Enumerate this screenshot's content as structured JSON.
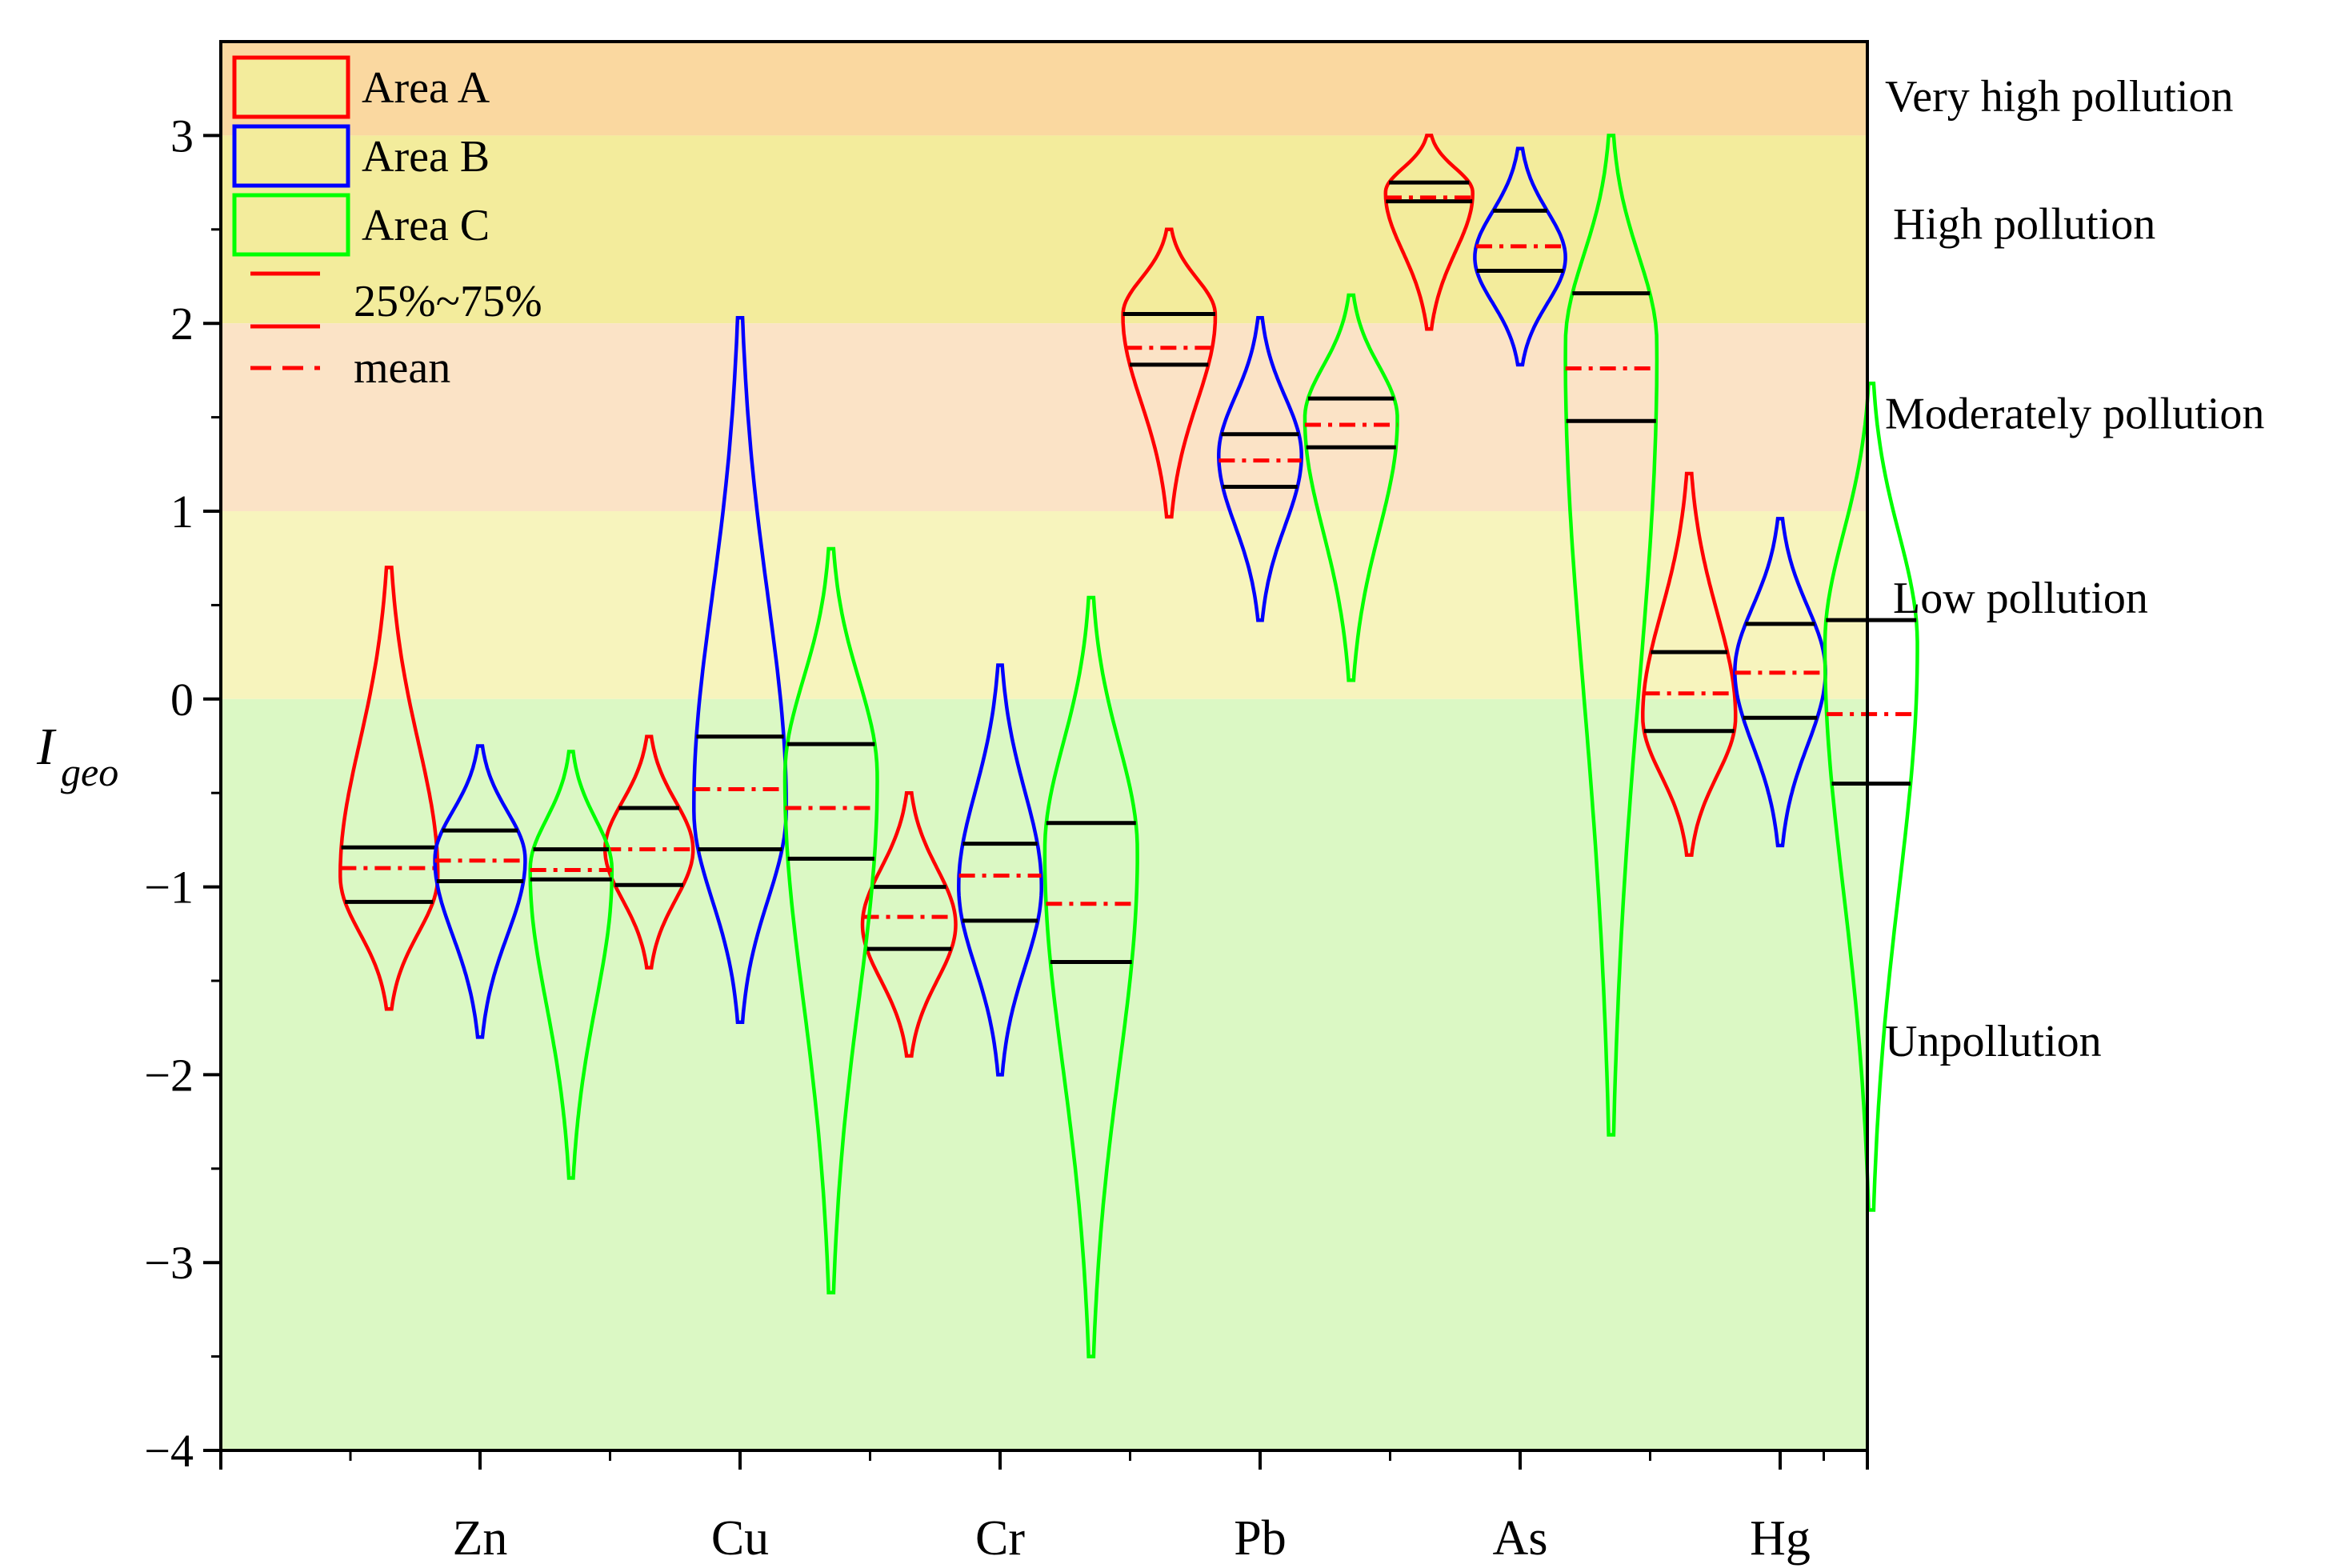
{
  "chart_data": {
    "type": "violin",
    "title": "",
    "ylabel": "I",
    "ylabel_subscript": "geo",
    "ylim": [
      -4,
      3.5
    ],
    "yticks": [
      -4,
      -3,
      -2,
      -1,
      0,
      1,
      2,
      3
    ],
    "ytick_labels": [
      "−4",
      "−3",
      "−2",
      "−1",
      "0",
      "1",
      "2",
      "3"
    ],
    "categories": [
      "Zn",
      "Cu",
      "Cr",
      "Pb",
      "As",
      "Hg"
    ],
    "zones": [
      {
        "name": "Very high pollution",
        "from": 3,
        "to": 3.5,
        "color": "#fad8a0"
      },
      {
        "name": "High pollution",
        "from": 2,
        "to": 3,
        "color": "#f3ec9c"
      },
      {
        "name": "Moderately pollution",
        "from": 1,
        "to": 2,
        "color": "#fbe3c6"
      },
      {
        "name": "Low pollution",
        "from": 0,
        "to": 1,
        "color": "#f7f4bd"
      },
      {
        "name": "Unpollution",
        "from": -4,
        "to": 0,
        "color": "#dbf8c4"
      }
    ],
    "series": [
      {
        "name": "Area A",
        "color": "#ff0000",
        "violins": [
          {
            "category": "Zn",
            "min": -1.65,
            "max": 0.7,
            "q1": -1.08,
            "q3": -0.79,
            "mean": -0.9,
            "mode": -0.95,
            "width": 0.36
          },
          {
            "category": "Cu",
            "min": -1.43,
            "max": -0.2,
            "q1": -0.99,
            "q3": -0.58,
            "mean": -0.8,
            "mode": -0.8,
            "width": 0.32
          },
          {
            "category": "Cr",
            "min": -1.9,
            "max": -0.5,
            "q1": -1.33,
            "q3": -1.0,
            "mean": -1.16,
            "mode": -1.2,
            "width": 0.34
          },
          {
            "category": "Pb",
            "min": 0.97,
            "max": 2.5,
            "q1": 1.78,
            "q3": 2.05,
            "mean": 1.87,
            "mode": 2.05,
            "width": 0.34
          },
          {
            "category": "As",
            "min": 1.97,
            "max": 3.0,
            "q1": 2.65,
            "q3": 2.75,
            "mean": 2.67,
            "mode": 2.7,
            "width": 0.32
          },
          {
            "category": "Hg",
            "min": -0.83,
            "max": 1.2,
            "q1": -0.17,
            "q3": 0.25,
            "mean": 0.03,
            "mode": -0.1,
            "width": 0.34
          }
        ]
      },
      {
        "name": "Area B",
        "color": "#0000ff",
        "violins": [
          {
            "category": "Zn",
            "min": -1.8,
            "max": -0.25,
            "q1": -0.97,
            "q3": -0.7,
            "mean": -0.86,
            "mode": -0.85,
            "width": 0.33
          },
          {
            "category": "Cu",
            "min": -1.72,
            "max": 2.03,
            "q1": -0.8,
            "q3": -0.2,
            "mean": -0.48,
            "mode": -0.6,
            "width": 0.34
          },
          {
            "category": "Cr",
            "min": -2.0,
            "max": 0.18,
            "q1": -1.18,
            "q3": -0.77,
            "mean": -0.94,
            "mode": -1.0,
            "width": 0.3
          },
          {
            "category": "Pb",
            "min": 0.42,
            "max": 2.03,
            "q1": 1.13,
            "q3": 1.41,
            "mean": 1.27,
            "mode": 1.3,
            "width": 0.3
          },
          {
            "category": "As",
            "min": 1.78,
            "max": 2.93,
            "q1": 2.28,
            "q3": 2.6,
            "mean": 2.41,
            "mode": 2.35,
            "width": 0.33
          },
          {
            "category": "Hg",
            "min": -0.78,
            "max": 0.96,
            "q1": -0.1,
            "q3": 0.4,
            "mean": 0.14,
            "mode": 0.15,
            "width": 0.33
          }
        ]
      },
      {
        "name": "Area C",
        "color": "#00ff00",
        "violins": [
          {
            "category": "Zn",
            "min": -2.55,
            "max": -0.28,
            "q1": -0.96,
            "q3": -0.8,
            "mean": -0.91,
            "mode": -0.9,
            "width": 0.3
          },
          {
            "category": "Cu",
            "min": -3.16,
            "max": 0.8,
            "q1": -0.85,
            "q3": -0.24,
            "mean": -0.58,
            "mode": -0.4,
            "width": 0.34
          },
          {
            "category": "Cr",
            "min": -3.5,
            "max": 0.54,
            "q1": -1.4,
            "q3": -0.66,
            "mean": -1.09,
            "mode": -0.8,
            "width": 0.34
          },
          {
            "category": "Pb",
            "min": 0.1,
            "max": 2.15,
            "q1": 1.34,
            "q3": 1.6,
            "mean": 1.46,
            "mode": 1.5,
            "width": 0.34
          },
          {
            "category": "As",
            "min": -2.32,
            "max": 3.0,
            "q1": 1.48,
            "q3": 2.16,
            "mean": 1.76,
            "mode": 1.9,
            "width": 0.34
          },
          {
            "category": "Hg",
            "min": -2.72,
            "max": 1.68,
            "q1": -0.45,
            "q3": 0.42,
            "mean": -0.08,
            "mode": 0.3,
            "width": 0.34
          }
        ]
      }
    ],
    "legend": {
      "entries": [
        "Area A",
        "Area B",
        "Area C",
        "25%~75%",
        "mean"
      ],
      "position": "top-left"
    },
    "colors": {
      "quartile_line": "#000000",
      "mean_line": "#ff0000",
      "legend_box_fill": "#f3ec9c"
    }
  }
}
